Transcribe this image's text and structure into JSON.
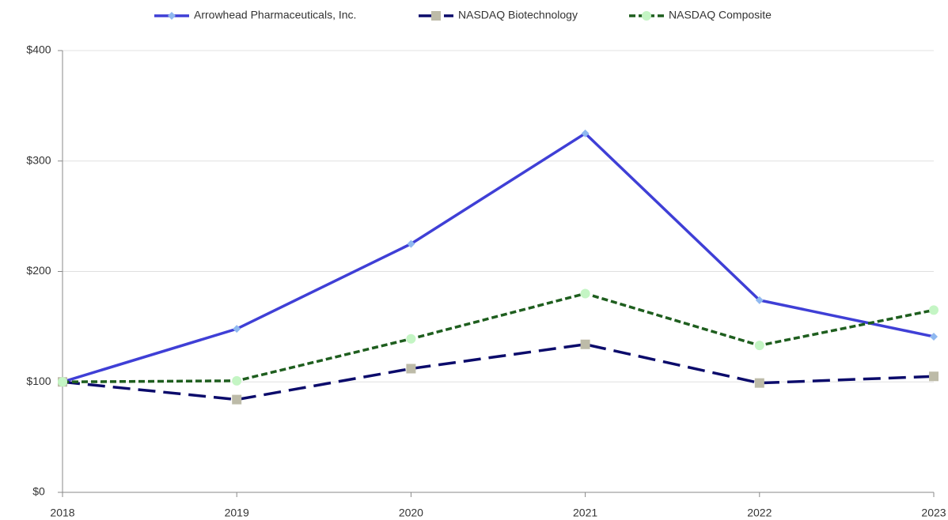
{
  "chart_data": {
    "type": "line",
    "categories": [
      "2018",
      "2019",
      "2020",
      "2021",
      "2022",
      "2023"
    ],
    "series": [
      {
        "name": "Arrowhead Pharmaceuticals, Inc.",
        "color": "#3f3fd6",
        "marker_color": "#8fb8f0",
        "marker": "diamond",
        "dash": "solid",
        "values": [
          100,
          148,
          225,
          325,
          174,
          141
        ]
      },
      {
        "name": "NASDAQ Biotechnology",
        "color": "#0b0b6b",
        "marker_color": "#bdbba8",
        "marker": "square",
        "dash": "long",
        "values": [
          100,
          84,
          112,
          134,
          99,
          105
        ]
      },
      {
        "name": "NASDAQ Composite",
        "color": "#1e5e1e",
        "marker_color": "#c4f5c4",
        "marker": "circle",
        "dash": "short",
        "values": [
          100,
          101,
          139,
          180,
          133,
          165
        ]
      }
    ],
    "ylim": [
      0,
      400
    ],
    "yticks": [
      {
        "value": 0,
        "label": "$0"
      },
      {
        "value": 100,
        "label": "$100"
      },
      {
        "value": 200,
        "label": "$200"
      },
      {
        "value": 300,
        "label": "$300"
      },
      {
        "value": 400,
        "label": "$400"
      }
    ],
    "grid": true,
    "legend": "top"
  }
}
